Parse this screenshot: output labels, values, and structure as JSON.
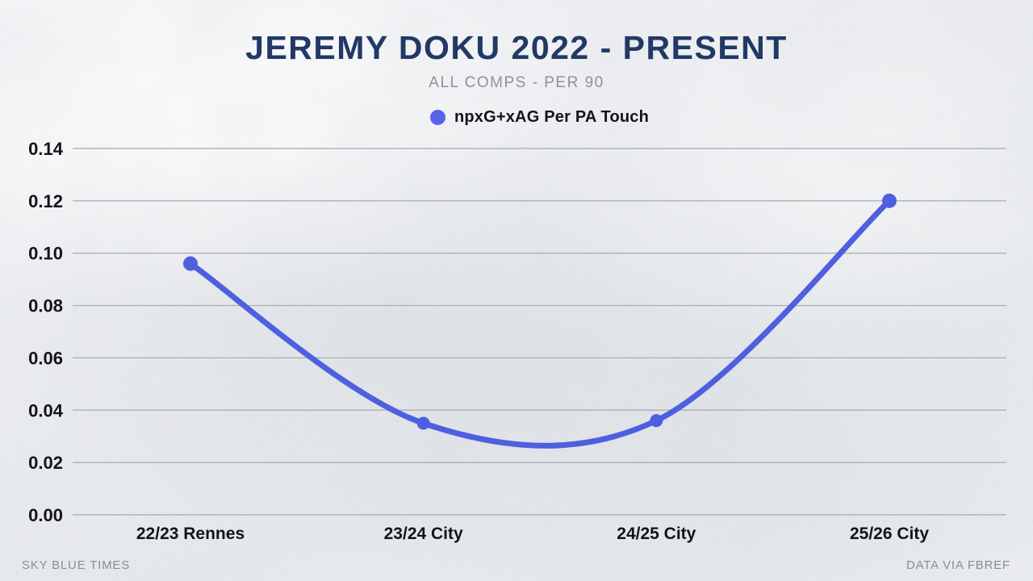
{
  "page": {
    "title": "JEREMY DOKU 2022 - PRESENT",
    "subtitle": "ALL COMPS - PER 90"
  },
  "legend": {
    "label": "npxG+xAG Per PA Touch",
    "marker_color": "#5664EC"
  },
  "footer": {
    "left": "SKY BLUE TIMES",
    "right": "DATA VIA FBREF"
  },
  "colors": {
    "accent": "#4E5FE0",
    "legend-dot": "#5664EC",
    "title": "#223866",
    "subtitle": "#8E9297",
    "grid": "#A5AAB0",
    "tick-text": "#121418",
    "footer-text": "#8A8E94"
  },
  "chart_data": {
    "type": "line",
    "title": "JEREMY DOKU 2022 - PRESENT",
    "subtitle": "ALL COMPS - PER 90",
    "categories": [
      "22/23 Rennes",
      "23/24 City",
      "24/25 City",
      "25/26 City"
    ],
    "series": [
      {
        "name": "npxG+xAG Per PA Touch",
        "values": [
          0.096,
          0.035,
          0.036,
          0.12
        ]
      }
    ],
    "xlabel": "",
    "ylabel": "",
    "ylim": [
      0,
      0.14
    ],
    "ytick_step": 0.02,
    "ytick_labels": [
      "0.00",
      "0.02",
      "0.04",
      "0.06",
      "0.08",
      "0.10",
      "0.12",
      "0.14"
    ],
    "grid": true,
    "legend_position": "top",
    "line_color": "#4E5FE0",
    "curve": "smooth"
  }
}
